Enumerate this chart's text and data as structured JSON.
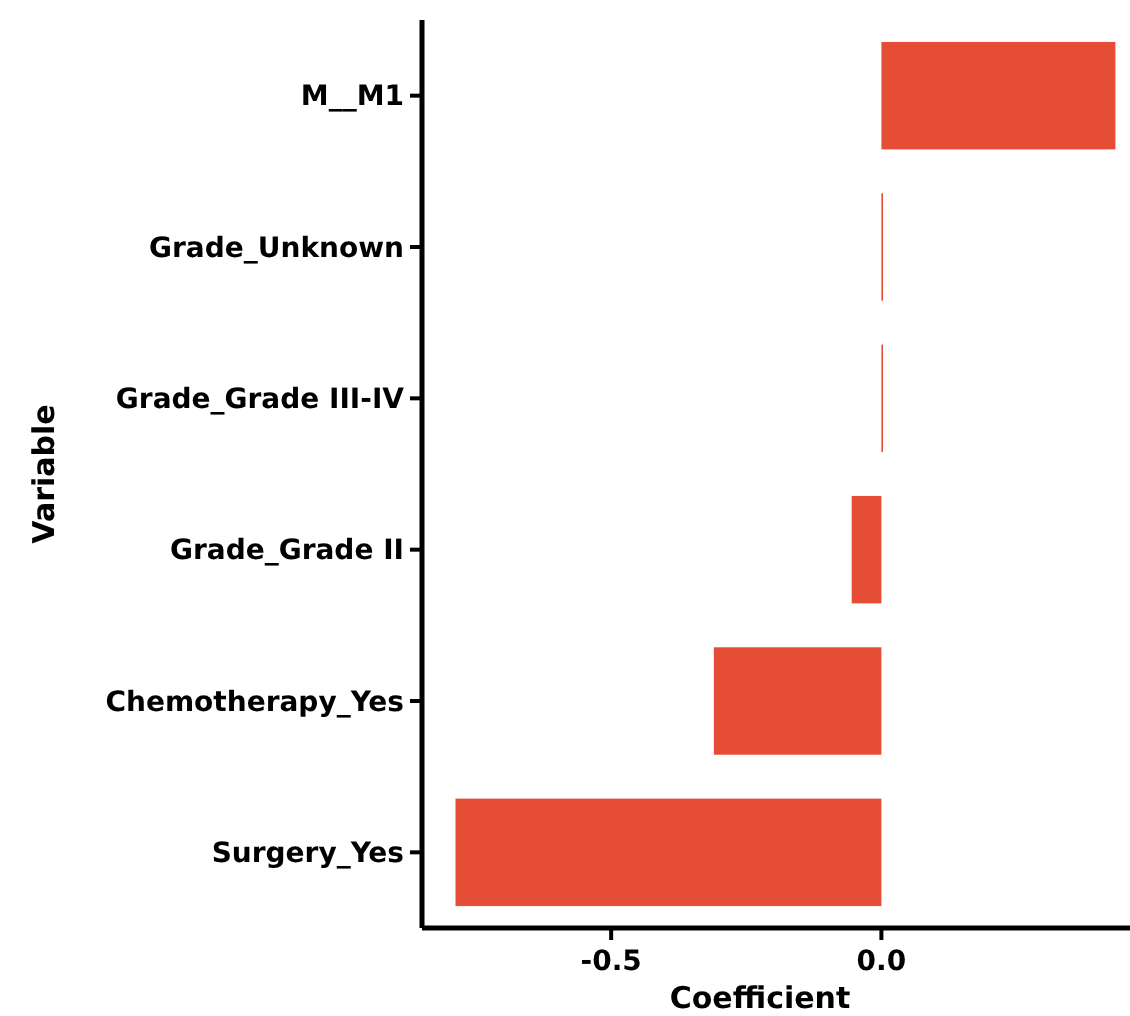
{
  "chart_data": {
    "type": "bar",
    "orientation": "horizontal",
    "xlabel": "Coefficient",
    "ylabel": "Variable",
    "categories": [
      "M__M1",
      "Grade_Unknown",
      "Grade_Grade III-IV",
      "Grade_Grade II",
      "Chemotherapy_Yes",
      "Surgery_Yes"
    ],
    "values": [
      0.433,
      0.003,
      0.003,
      -0.055,
      -0.31,
      -0.788
    ],
    "color": "#e64d36",
    "xlim": [
      -0.85,
      0.46
    ],
    "xticks": [
      {
        "value": -0.5,
        "label": "-0.5"
      },
      {
        "value": 0,
        "label": "0.0"
      }
    ],
    "grid": false
  }
}
